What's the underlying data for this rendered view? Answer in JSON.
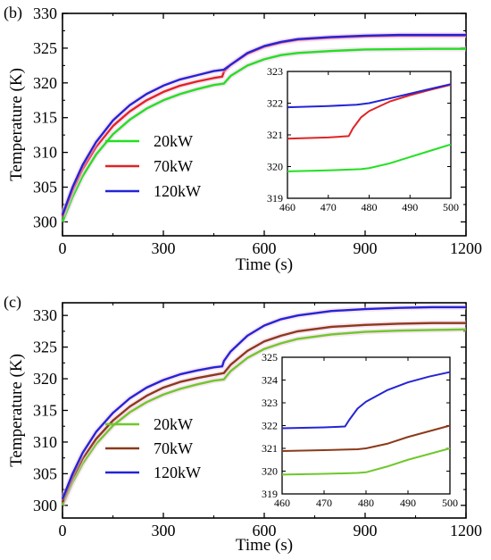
{
  "colors": {
    "20kW_b": "#22e022",
    "70kW_b": "#e02424",
    "120kW_b": "#2424d6",
    "20kW_c": "#6fc82a",
    "70kW_c": "#8b3a1a",
    "120kW_c": "#2424d6",
    "halo": "#f2c6e4"
  },
  "chart_data": [
    {
      "panel_label": "(b)",
      "type": "line",
      "xlabel": "Time (s)",
      "ylabel": "Temperature (K)",
      "xlim": [
        0,
        1200
      ],
      "ylim": [
        298,
        330
      ],
      "xticks": [
        0,
        300,
        600,
        900,
        1200
      ],
      "yticks": [
        300,
        305,
        310,
        315,
        320,
        325,
        330
      ],
      "grid": false,
      "legend_placement": "left",
      "series": [
        {
          "name": "20kW",
          "color": "#22e022",
          "x": [
            0,
            30,
            60,
            100,
            150,
            200,
            250,
            300,
            350,
            400,
            450,
            480,
            500,
            550,
            600,
            650,
            700,
            800,
            900,
            1000,
            1100,
            1200
          ],
          "y": [
            300.0,
            303.6,
            306.6,
            309.7,
            312.6,
            314.7,
            316.3,
            317.5,
            318.4,
            319.1,
            319.7,
            319.9,
            321.0,
            322.5,
            323.4,
            324.0,
            324.3,
            324.6,
            324.8,
            324.85,
            324.9,
            324.9
          ]
        },
        {
          "name": "70kW",
          "color": "#e02424",
          "x": [
            0,
            30,
            60,
            100,
            150,
            200,
            250,
            300,
            350,
            400,
            450,
            475,
            480,
            500,
            550,
            600,
            650,
            700,
            800,
            900,
            1000,
            1100,
            1200
          ],
          "y": [
            300.8,
            304.5,
            307.6,
            310.8,
            313.8,
            315.9,
            317.5,
            318.7,
            319.6,
            320.2,
            320.7,
            320.9,
            321.6,
            322.6,
            324.2,
            325.2,
            325.8,
            326.2,
            326.5,
            326.7,
            326.8,
            326.8,
            326.8
          ]
        },
        {
          "name": "120kW",
          "color": "#2424d6",
          "x": [
            0,
            30,
            60,
            100,
            150,
            200,
            250,
            300,
            350,
            400,
            450,
            480,
            500,
            550,
            600,
            650,
            700,
            800,
            900,
            1000,
            1100,
            1200
          ],
          "y": [
            301.0,
            305.0,
            308.2,
            311.5,
            314.6,
            316.8,
            318.4,
            319.6,
            320.5,
            321.1,
            321.7,
            321.9,
            322.6,
            324.3,
            325.3,
            325.9,
            326.3,
            326.6,
            326.8,
            326.9,
            326.9,
            326.9
          ]
        }
      ],
      "inset": {
        "xlim": [
          460,
          500
        ],
        "ylim": [
          319,
          323
        ],
        "xticks": [
          460,
          470,
          480,
          490,
          500
        ],
        "yticks": [
          319,
          320,
          321,
          322,
          323
        ],
        "series": [
          {
            "name": "20kW",
            "color": "#22e022",
            "x": [
              460,
              470,
              478,
              480,
              485,
              490,
              495,
              500
            ],
            "y": [
              319.85,
              319.88,
              319.92,
              319.95,
              320.1,
              320.3,
              320.5,
              320.7
            ]
          },
          {
            "name": "70kW",
            "color": "#e02424",
            "x": [
              460,
              470,
              475,
              476,
              478,
              480,
              485,
              490,
              495,
              500
            ],
            "y": [
              320.88,
              320.92,
              320.96,
              321.2,
              321.55,
              321.75,
              322.05,
              322.25,
              322.42,
              322.58
            ]
          },
          {
            "name": "120kW",
            "color": "#2424d6",
            "x": [
              460,
              470,
              477,
              480,
              485,
              490,
              495,
              500
            ],
            "y": [
              321.87,
              321.91,
              321.95,
              322.0,
              322.15,
              322.3,
              322.45,
              322.6
            ]
          }
        ]
      }
    },
    {
      "panel_label": "(c)",
      "type": "line",
      "xlabel": "Time (s)",
      "ylabel": "Temperature (K)",
      "xlim": [
        0,
        1200
      ],
      "ylim": [
        298,
        332
      ],
      "xticks": [
        0,
        300,
        600,
        900,
        1200
      ],
      "yticks": [
        300,
        305,
        310,
        315,
        320,
        325,
        330
      ],
      "grid": false,
      "legend_placement": "left",
      "series": [
        {
          "name": "20kW",
          "color": "#6fc82a",
          "x": [
            0,
            30,
            60,
            100,
            150,
            200,
            250,
            300,
            350,
            400,
            450,
            480,
            500,
            550,
            600,
            650,
            700,
            800,
            900,
            1000,
            1100,
            1200
          ],
          "y": [
            300.0,
            303.6,
            306.6,
            309.7,
            312.6,
            314.7,
            316.3,
            317.5,
            318.4,
            319.1,
            319.7,
            319.9,
            321.2,
            323.3,
            324.7,
            325.6,
            326.3,
            327.0,
            327.4,
            327.6,
            327.7,
            327.8
          ]
        },
        {
          "name": "70kW",
          "color": "#8b3a1a",
          "x": [
            0,
            30,
            60,
            100,
            150,
            200,
            250,
            300,
            350,
            400,
            450,
            480,
            500,
            550,
            600,
            650,
            700,
            800,
            900,
            1000,
            1100,
            1200
          ],
          "y": [
            300.5,
            304.3,
            307.4,
            310.5,
            313.4,
            315.6,
            317.3,
            318.6,
            319.5,
            320.1,
            320.6,
            320.9,
            322.2,
            324.4,
            325.9,
            326.8,
            327.5,
            328.2,
            328.5,
            328.7,
            328.8,
            328.8
          ]
        },
        {
          "name": "120kW",
          "color": "#2424d6",
          "x": [
            0,
            30,
            60,
            100,
            150,
            200,
            250,
            300,
            350,
            400,
            450,
            475,
            480,
            500,
            550,
            600,
            650,
            700,
            800,
            900,
            1000,
            1100,
            1200
          ],
          "y": [
            301.0,
            305.0,
            308.3,
            311.6,
            314.6,
            316.9,
            318.6,
            319.8,
            320.7,
            321.3,
            321.8,
            321.95,
            322.8,
            324.3,
            326.8,
            328.4,
            329.4,
            330.0,
            330.7,
            331.0,
            331.2,
            331.3,
            331.3
          ]
        }
      ],
      "inset": {
        "xlim": [
          460,
          500
        ],
        "ylim": [
          319,
          325
        ],
        "xticks": [
          460,
          470,
          480,
          490,
          500
        ],
        "yticks": [
          319,
          320,
          321,
          322,
          323,
          324,
          325
        ],
        "series": [
          {
            "name": "20kW",
            "color": "#6fc82a",
            "x": [
              460,
              470,
              478,
              480,
              485,
              490,
              495,
              500
            ],
            "y": [
              319.85,
              319.88,
              319.92,
              319.95,
              320.2,
              320.5,
              320.75,
              321.0
            ]
          },
          {
            "name": "70kW",
            "color": "#8b3a1a",
            "x": [
              460,
              470,
              478,
              480,
              485,
              490,
              495,
              500
            ],
            "y": [
              320.88,
              320.92,
              320.96,
              321.0,
              321.2,
              321.5,
              321.75,
              322.0
            ]
          },
          {
            "name": "120kW",
            "color": "#2424d6",
            "x": [
              460,
              470,
              475,
              476,
              478,
              480,
              485,
              490,
              495,
              500
            ],
            "y": [
              321.88,
              321.92,
              321.96,
              322.25,
              322.75,
              323.05,
              323.55,
              323.9,
              324.15,
              324.35
            ]
          }
        ]
      }
    }
  ]
}
